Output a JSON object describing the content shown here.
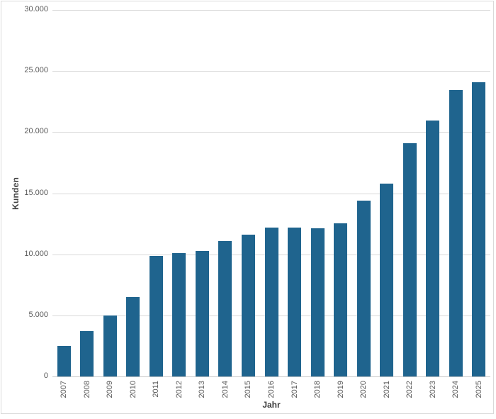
{
  "chart_data": {
    "type": "bar",
    "title": "",
    "xlabel": "Jahr",
    "ylabel": "Kunden",
    "categories": [
      "2007",
      "2008",
      "2009",
      "2010",
      "2011",
      "2012",
      "2013",
      "2014",
      "2015",
      "2016",
      "2017",
      "2018",
      "2019",
      "2020",
      "2021",
      "2022",
      "2023",
      "2024",
      "2025"
    ],
    "values": [
      2500,
      3700,
      5000,
      6500,
      9850,
      10100,
      10250,
      11100,
      11600,
      12200,
      12200,
      12150,
      12550,
      14400,
      15800,
      19100,
      20950,
      23450,
      24100
    ],
    "ylim": [
      0,
      30000
    ],
    "y_ticks": [
      {
        "value": 0,
        "label": "0"
      },
      {
        "value": 5000,
        "label": "5.000"
      },
      {
        "value": 10000,
        "label": "10.000"
      },
      {
        "value": 15000,
        "label": "15.000"
      },
      {
        "value": 20000,
        "label": "20.000"
      },
      {
        "value": 25000,
        "label": "25.000"
      },
      {
        "value": 30000,
        "label": "30.000"
      }
    ],
    "grid": true,
    "legend_position": "none",
    "colors": {
      "bar": "#1f648e",
      "gridline": "#d9d9d9",
      "axis_line": "#c6c6c6",
      "tick_label": "#595959",
      "axis_title": "#404040",
      "frame_border": "#d9d9d9",
      "background": "#ffffff"
    }
  }
}
